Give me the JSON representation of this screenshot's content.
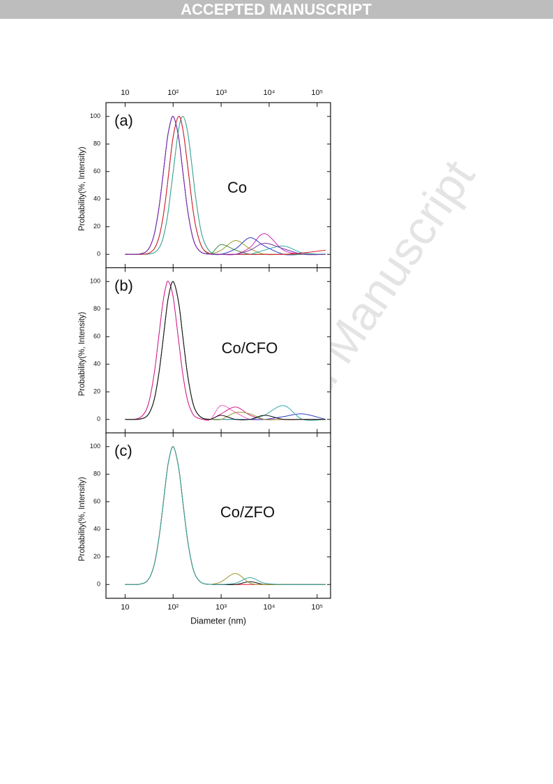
{
  "header": "ACCEPTED MANUSCRIPT",
  "watermark": "Accepted Manuscript",
  "chart_data": [
    {
      "type": "line",
      "panel_label": "(a)",
      "annotation": "Co",
      "ylabel": "Probability(%, Intensity)",
      "x_tick_labels": "top",
      "log_x": true,
      "xlim": [
        4,
        190000
      ],
      "ylim": [
        -10,
        110
      ],
      "xticks": [
        10,
        {
          "value": 100,
          "label": "10²"
        },
        {
          "value": 1000,
          "label": "10³"
        },
        {
          "value": 10000,
          "label": "10⁴"
        },
        {
          "value": 100000,
          "label": "10⁵"
        }
      ],
      "yticks": [
        0,
        20,
        40,
        60,
        80,
        100
      ],
      "x": [
        10,
        20,
        30,
        40,
        50,
        60,
        70,
        80,
        100,
        130,
        160,
        200,
        250,
        300,
        400,
        600,
        1000,
        2000,
        4000,
        8000,
        20000,
        50000,
        150000
      ],
      "series": [
        {
          "color": "#d21fb0",
          "values": [
            0,
            0.2,
            3.3,
            13.8,
            32.3,
            54.0,
            74.1,
            88.9,
            100,
            85.0,
            59.4,
            32.3,
            13.8,
            5.8,
            1.1,
            0.1,
            0,
            0,
            5,
            15,
            3,
            0,
            0
          ]
        },
        {
          "color": "#2a3bc4",
          "values": [
            0,
            0.2,
            3.3,
            13.8,
            32.3,
            54.0,
            74.1,
            88.9,
            100,
            85.0,
            59.4,
            32.3,
            13.8,
            5.8,
            1.1,
            0.1,
            0,
            4,
            12,
            6,
            0,
            0,
            0
          ]
        },
        {
          "color": "#9a9a2e",
          "values": [
            0,
            0,
            0.1,
            1.1,
            4.1,
            10.3,
            20.0,
            32.3,
            59.4,
            90.4,
            100,
            88.9,
            62.5,
            39.4,
            13.8,
            1.6,
            3,
            10,
            4,
            0,
            0,
            0,
            0
          ]
        },
        {
          "color": "#3a8a3a",
          "values": [
            0,
            0,
            0.6,
            3.8,
            11.6,
            24.4,
            40.5,
            57.3,
            85.0,
            100,
            90.4,
            64.6,
            36.5,
            19.3,
            5.1,
            0.4,
            7,
            3,
            0,
            0,
            0,
            0,
            0
          ]
        },
        {
          "color": "#33a6a6",
          "values": [
            0,
            0,
            0.1,
            1.1,
            4.1,
            10.3,
            20.0,
            32.3,
            59.4,
            90.4,
            100,
            88.9,
            62.5,
            39.4,
            13.8,
            1.6,
            0,
            0,
            0,
            3,
            6,
            1,
            0
          ]
        },
        {
          "color": "#e0142c",
          "values": [
            0,
            0,
            0.6,
            3.8,
            11.6,
            24.4,
            40.5,
            57.3,
            85.0,
            100,
            90.4,
            64.6,
            36.5,
            19.3,
            5.1,
            0.4,
            0,
            0,
            0,
            0,
            0,
            1,
            3
          ]
        },
        {
          "color": "#7a2ca8",
          "values": [
            0,
            0.2,
            3.3,
            13.8,
            32.3,
            54.0,
            74.1,
            88.9,
            100,
            85.0,
            59.4,
            32.3,
            13.8,
            5.8,
            1.1,
            0.1,
            0,
            0,
            3,
            8,
            4,
            0,
            0
          ]
        }
      ]
    },
    {
      "type": "line",
      "panel_label": "(b)",
      "annotation": "Co/CFO",
      "ylabel": "Probability(%, Intensity)",
      "x_tick_labels": "none",
      "log_x": true,
      "xlim": [
        4,
        190000
      ],
      "ylim": [
        -10,
        110
      ],
      "xticks": [
        10,
        100,
        1000,
        10000,
        100000
      ],
      "yticks": [
        0,
        20,
        40,
        60,
        80,
        100
      ],
      "x": [
        10,
        20,
        30,
        40,
        50,
        60,
        70,
        80,
        100,
        130,
        160,
        200,
        250,
        300,
        400,
        600,
        1000,
        2000,
        4000,
        8000,
        20000,
        50000,
        150000
      ],
      "series": [
        {
          "color": "#ee5fc4",
          "values": [
            0,
            1.1,
            10.3,
            32.3,
            59.4,
            82.3,
            95.9,
            100,
            88.9,
            57.3,
            32.3,
            13.8,
            4.7,
            1.6,
            0.2,
            0,
            10,
            5,
            0,
            0,
            0,
            0,
            0
          ]
        },
        {
          "color": "#d21f8a",
          "values": [
            0,
            1.1,
            10.3,
            32.3,
            59.4,
            82.3,
            95.9,
            100,
            88.9,
            57.3,
            32.3,
            13.8,
            4.7,
            1.6,
            0.2,
            0,
            4,
            9,
            3,
            0,
            0,
            0,
            0
          ]
        },
        {
          "color": "#2a3bc4",
          "values": [
            0,
            0.2,
            3.3,
            13.8,
            32.3,
            54.0,
            74.1,
            88.9,
            100,
            85.0,
            59.4,
            32.3,
            13.8,
            5.8,
            1.1,
            0.1,
            0,
            0,
            0,
            0,
            2,
            4,
            0
          ]
        },
        {
          "color": "#33a6a6",
          "values": [
            0,
            0.2,
            3.3,
            13.8,
            32.3,
            54.0,
            74.1,
            88.9,
            100,
            85.0,
            59.4,
            32.3,
            13.8,
            5.8,
            1.1,
            0.1,
            0,
            0,
            0,
            3,
            10,
            0,
            0
          ]
        },
        {
          "color": "#9a9a2e",
          "values": [
            0,
            0.2,
            3.3,
            13.8,
            32.3,
            54.0,
            74.1,
            88.9,
            100,
            85.0,
            59.4,
            32.3,
            13.8,
            5.8,
            1.1,
            0.1,
            0,
            5,
            4,
            0,
            0,
            0,
            0
          ]
        },
        {
          "color": "#111111",
          "values": [
            0,
            0.2,
            3.3,
            13.8,
            32.3,
            54.0,
            74.1,
            88.9,
            100,
            85.0,
            59.4,
            32.3,
            13.8,
            5.8,
            1.1,
            0.1,
            3,
            0,
            0,
            3,
            0,
            0,
            0
          ]
        }
      ]
    },
    {
      "type": "line",
      "panel_label": "(c)",
      "annotation": "Co/ZFO",
      "ylabel": "Probability(%, Intensity)",
      "xlabel": "Diameter (nm)",
      "x_tick_labels": "bottom",
      "log_x": true,
      "xlim": [
        4,
        190000
      ],
      "ylim": [
        -10,
        110
      ],
      "xticks": [
        10,
        {
          "value": 100,
          "label": "10²"
        },
        {
          "value": 1000,
          "label": "10³"
        },
        {
          "value": 10000,
          "label": "10⁴"
        },
        {
          "value": 100000,
          "label": "10⁵"
        }
      ],
      "yticks": [
        0,
        20,
        40,
        60,
        80,
        100
      ],
      "x": [
        10,
        20,
        30,
        40,
        50,
        60,
        70,
        80,
        100,
        130,
        160,
        200,
        250,
        300,
        400,
        600,
        1000,
        2000,
        4000,
        8000,
        20000,
        50000,
        150000
      ],
      "series": [
        {
          "color": "#e0142c",
          "values": [
            0,
            0.2,
            3.3,
            13.8,
            32.3,
            54.0,
            74.1,
            88.9,
            100,
            85.0,
            59.4,
            32.3,
            13.8,
            5.8,
            1.1,
            0.1,
            0,
            0,
            0,
            0,
            0,
            0,
            0
          ]
        },
        {
          "color": "#111111",
          "values": [
            0,
            0.2,
            3.3,
            13.8,
            32.3,
            54.0,
            74.1,
            88.9,
            100,
            85.0,
            59.4,
            32.3,
            13.8,
            5.8,
            1.1,
            0.1,
            0,
            0,
            2,
            0,
            0,
            0,
            0
          ]
        },
        {
          "color": "#9a9a2e",
          "values": [
            0,
            0.2,
            3.3,
            13.8,
            32.3,
            54.0,
            74.1,
            88.9,
            100,
            85.0,
            59.4,
            32.3,
            13.8,
            5.8,
            1.1,
            0.1,
            2,
            8,
            1,
            0,
            0,
            0,
            0
          ]
        },
        {
          "color": "#33a6a6",
          "values": [
            0,
            0.2,
            3.3,
            13.8,
            32.3,
            54.0,
            74.1,
            88.9,
            100,
            85.0,
            59.4,
            32.3,
            13.8,
            5.8,
            1.1,
            0.1,
            0,
            1,
            5,
            1,
            0,
            0,
            0
          ]
        }
      ]
    }
  ]
}
